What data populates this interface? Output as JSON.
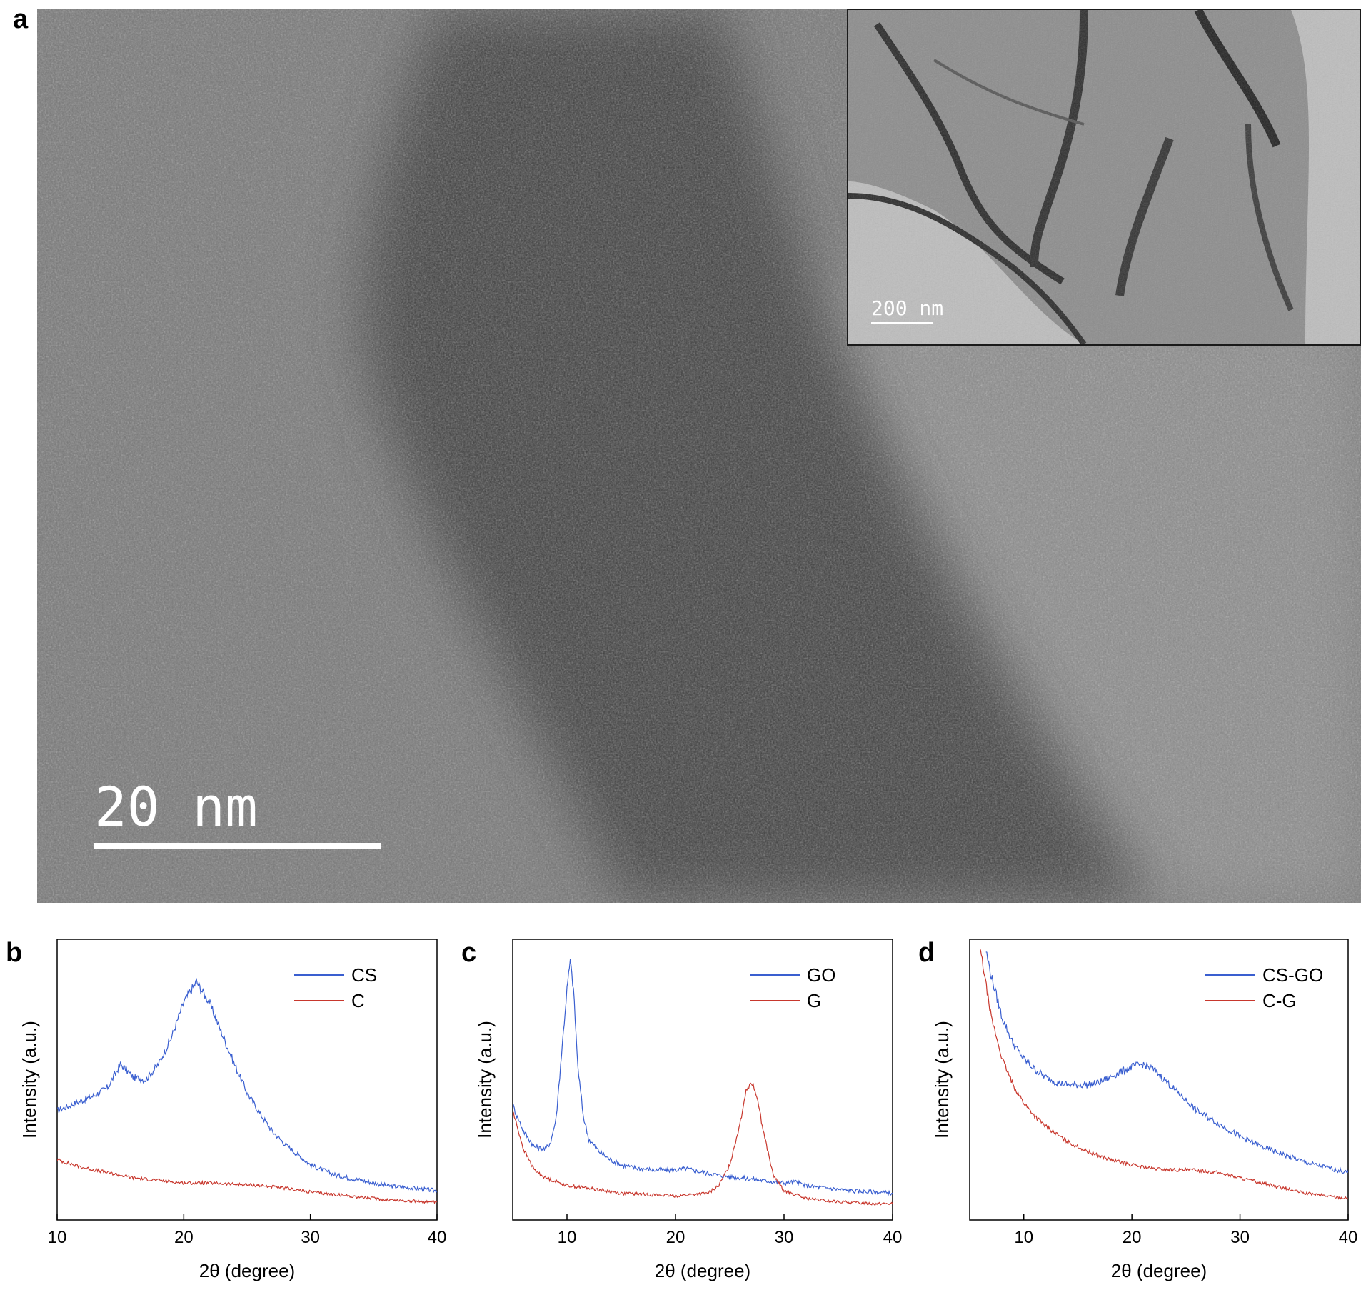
{
  "figure": {
    "panels": [
      "a",
      "b",
      "c",
      "d"
    ]
  },
  "tem": {
    "main_scalebar": "20 nm",
    "inset_scalebar": "200 nm"
  },
  "chart_data": [
    {
      "panel": "b",
      "type": "line",
      "xlabel": "2θ (degree)",
      "ylabel": "Intensity (a.u.)",
      "xlim": [
        10,
        40
      ],
      "xticks": [
        10,
        20,
        30,
        40
      ],
      "yticks": [],
      "legend_position": "top-right",
      "series": [
        {
          "name": "CS",
          "color": "#3a5fd0",
          "x": [
            10,
            11,
            12,
            13,
            14,
            15,
            16,
            17,
            18,
            19,
            20,
            21,
            22,
            23,
            24,
            25,
            26,
            27,
            28,
            29,
            30,
            31,
            32,
            33,
            34,
            35,
            36,
            37,
            38,
            39,
            40
          ],
          "y": [
            0.38,
            0.4,
            0.42,
            0.44,
            0.47,
            0.56,
            0.51,
            0.5,
            0.56,
            0.66,
            0.8,
            0.88,
            0.8,
            0.68,
            0.56,
            0.45,
            0.37,
            0.3,
            0.25,
            0.21,
            0.17,
            0.15,
            0.13,
            0.12,
            0.11,
            0.1,
            0.09,
            0.085,
            0.08,
            0.075,
            0.07
          ]
        },
        {
          "name": "C",
          "color": "#c8372d",
          "x": [
            10,
            12,
            14,
            16,
            18,
            20,
            22,
            24,
            26,
            28,
            30,
            32,
            34,
            36,
            38,
            40
          ],
          "y": [
            0.19,
            0.16,
            0.14,
            0.12,
            0.11,
            0.1,
            0.1,
            0.095,
            0.09,
            0.08,
            0.065,
            0.055,
            0.045,
            0.035,
            0.03,
            0.025
          ]
        }
      ]
    },
    {
      "panel": "c",
      "type": "line",
      "xlabel": "2θ (degree)",
      "ylabel": "Intensity (a.u.)",
      "xlim": [
        5,
        40
      ],
      "xticks": [
        10,
        20,
        30,
        40
      ],
      "yticks": [],
      "legend_position": "top-right",
      "series": [
        {
          "name": "GO",
          "color": "#3a5fd0",
          "x": [
            5,
            6,
            7,
            8,
            8.5,
            9,
            9.5,
            10,
            10.3,
            10.6,
            11,
            11.5,
            12,
            13,
            14,
            15,
            16,
            18,
            20,
            21,
            22,
            24,
            26,
            28,
            30,
            31,
            32,
            34,
            36,
            38,
            40
          ],
          "y": [
            0.4,
            0.3,
            0.24,
            0.23,
            0.26,
            0.35,
            0.6,
            0.85,
            0.96,
            0.85,
            0.55,
            0.36,
            0.27,
            0.22,
            0.19,
            0.17,
            0.16,
            0.15,
            0.15,
            0.155,
            0.145,
            0.13,
            0.12,
            0.11,
            0.1,
            0.105,
            0.09,
            0.08,
            0.07,
            0.065,
            0.06
          ]
        },
        {
          "name": "G",
          "color": "#c8372d",
          "x": [
            5,
            6,
            7,
            8,
            10,
            12,
            15,
            20,
            23,
            24,
            25,
            26,
            26.5,
            27,
            27.5,
            28,
            29,
            30,
            32,
            34,
            36,
            38,
            40
          ],
          "y": [
            0.38,
            0.23,
            0.15,
            0.12,
            0.09,
            0.08,
            0.06,
            0.05,
            0.06,
            0.09,
            0.17,
            0.34,
            0.46,
            0.49,
            0.44,
            0.32,
            0.13,
            0.07,
            0.04,
            0.03,
            0.025,
            0.02,
            0.02
          ]
        }
      ]
    },
    {
      "panel": "d",
      "type": "line",
      "xlabel": "2θ (degree)",
      "ylabel": "Intensity (a.u.)",
      "xlim": [
        5,
        40
      ],
      "xticks": [
        10,
        20,
        30,
        40
      ],
      "yticks": [],
      "legend_position": "top-right",
      "series": [
        {
          "name": "CS-GO",
          "color": "#3a5fd0",
          "x": [
            6.5,
            7,
            8,
            9,
            10,
            11,
            12,
            13,
            14,
            15,
            16,
            17,
            18,
            19,
            20,
            21,
            22,
            23,
            24,
            25,
            26,
            28,
            30,
            32,
            34,
            36,
            38,
            40
          ],
          "y": [
            1.0,
            0.9,
            0.74,
            0.64,
            0.58,
            0.54,
            0.51,
            0.49,
            0.48,
            0.48,
            0.48,
            0.49,
            0.51,
            0.53,
            0.55,
            0.56,
            0.54,
            0.5,
            0.46,
            0.42,
            0.38,
            0.33,
            0.28,
            0.24,
            0.21,
            0.18,
            0.16,
            0.14
          ]
        },
        {
          "name": "C-G",
          "color": "#c8372d",
          "x": [
            6,
            7,
            8,
            9,
            10,
            11,
            12,
            13,
            14,
            16,
            18,
            20,
            22,
            24,
            26,
            28,
            30,
            32,
            34,
            36,
            38,
            40
          ],
          "y": [
            1.0,
            0.74,
            0.58,
            0.48,
            0.41,
            0.36,
            0.32,
            0.29,
            0.26,
            0.22,
            0.19,
            0.17,
            0.155,
            0.15,
            0.15,
            0.14,
            0.12,
            0.1,
            0.08,
            0.06,
            0.05,
            0.04
          ]
        }
      ]
    }
  ]
}
